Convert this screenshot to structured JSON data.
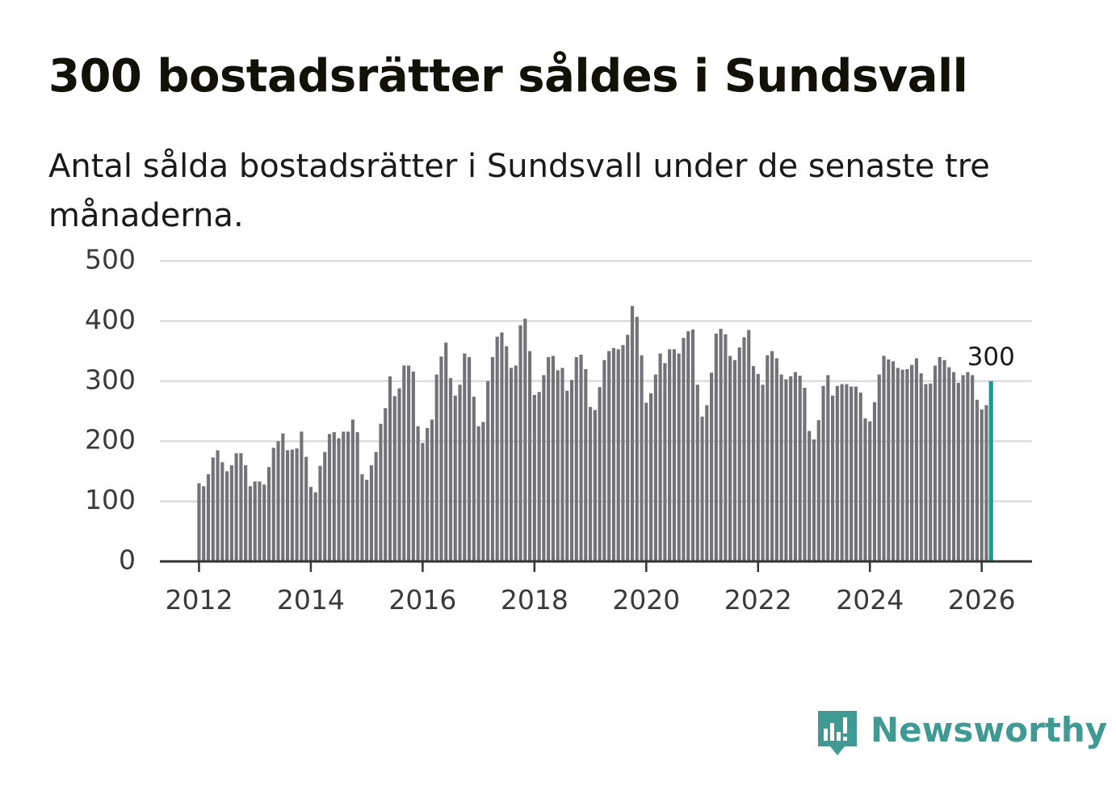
{
  "title": "300 bostadsrätter såldes i Sundsvall",
  "subtitle": "Antal sålda bostadsrätter i Sundsvall under de senaste tre månaderna.",
  "brand": {
    "name": "Newsworthy",
    "icon": "newsworthy-logo-icon",
    "color": "#3e9a93"
  },
  "colors": {
    "bar": "#737276",
    "highlight": "#1b9a91",
    "grid": "#dcdcdc",
    "axis": "#333333"
  },
  "chart_data": {
    "type": "bar",
    "title": "300 bostadsrätter såldes i Sundsvall",
    "xlabel": "",
    "ylabel": "",
    "ylim": [
      0,
      500
    ],
    "yticks": [
      0,
      100,
      200,
      300,
      400,
      500
    ],
    "ytick_labels": [
      "0",
      "100",
      "200",
      "300",
      "400",
      "500"
    ],
    "xticks": [
      2012,
      2014,
      2016,
      2018,
      2020,
      2022,
      2024,
      2026
    ],
    "xtick_labels": [
      "2012",
      "2014",
      "2016",
      "2018",
      "2020",
      "2022",
      "2024",
      "2026"
    ],
    "xlim": [
      2011.3,
      2026.9
    ],
    "start": "2012-01",
    "grid": true,
    "highlight_last": true,
    "last_value_label": "300",
    "values": [
      130,
      125,
      145,
      173,
      185,
      165,
      150,
      160,
      180,
      180,
      160,
      125,
      133,
      133,
      128,
      157,
      189,
      200,
      213,
      185,
      186,
      188,
      216,
      174,
      124,
      115,
      159,
      182,
      212,
      215,
      205,
      216,
      216,
      236,
      215,
      145,
      136,
      160,
      182,
      229,
      255,
      308,
      275,
      288,
      326,
      326,
      316,
      225,
      197,
      222,
      236,
      311,
      341,
      364,
      305,
      276,
      294,
      346,
      340,
      274,
      225,
      232,
      300,
      340,
      374,
      381,
      358,
      322,
      326,
      393,
      404,
      350,
      277,
      282,
      310,
      340,
      342,
      318,
      322,
      284,
      302,
      340,
      344,
      320,
      257,
      252,
      290,
      335,
      350,
      355,
      353,
      360,
      377,
      425,
      407,
      343,
      264,
      280,
      311,
      346,
      330,
      353,
      353,
      346,
      372,
      383,
      386,
      294,
      241,
      260,
      314,
      379,
      387,
      378,
      342,
      335,
      356,
      373,
      385,
      325,
      312,
      294,
      343,
      350,
      338,
      311,
      303,
      308,
      315,
      309,
      289,
      217,
      203,
      235,
      292,
      310,
      276,
      292,
      295,
      295,
      291,
      291,
      281,
      238,
      233,
      265,
      311,
      342,
      336,
      333,
      322,
      319,
      320,
      327,
      338,
      313,
      295,
      296,
      326,
      340,
      335,
      323,
      315,
      297,
      310,
      315,
      310,
      269,
      253,
      260,
      300
    ]
  }
}
